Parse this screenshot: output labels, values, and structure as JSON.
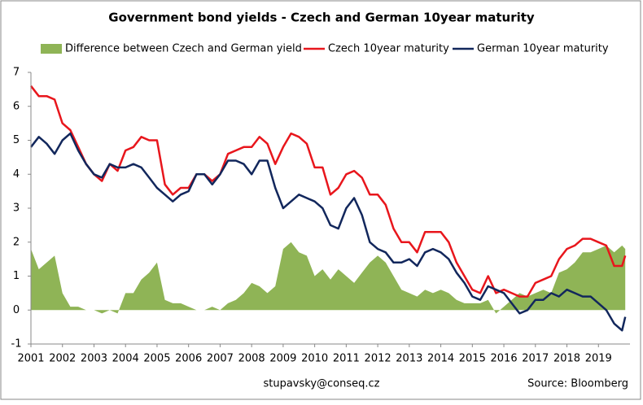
{
  "chart_data": {
    "type": "line",
    "title": "Government bond yields - Czech and German 10year maturity",
    "footer": "stupavsky@conseq.cz",
    "source": "Source: Bloomberg",
    "x": [
      2001,
      2001.25,
      2001.5,
      2001.75,
      2002,
      2002.25,
      2002.5,
      2002.75,
      2003,
      2003.25,
      2003.5,
      2003.75,
      2004,
      2004.25,
      2004.5,
      2004.75,
      2005,
      2005.25,
      2005.5,
      2005.75,
      2006,
      2006.25,
      2006.5,
      2006.75,
      2007,
      2007.25,
      2007.5,
      2007.75,
      2008,
      2008.25,
      2008.5,
      2008.75,
      2009,
      2009.25,
      2009.5,
      2009.75,
      2010,
      2010.25,
      2010.5,
      2010.75,
      2011,
      2011.25,
      2011.5,
      2011.75,
      2012,
      2012.25,
      2012.5,
      2012.75,
      2013,
      2013.25,
      2013.5,
      2013.75,
      2014,
      2014.25,
      2014.5,
      2014.75,
      2015,
      2015.25,
      2015.5,
      2015.75,
      2016,
      2016.25,
      2016.5,
      2016.75,
      2017,
      2017.25,
      2017.5,
      2017.75,
      2018,
      2018.25,
      2018.5,
      2018.75,
      2019,
      2019.25,
      2019.5,
      2019.75,
      2019.85
    ],
    "series": [
      {
        "name": "Difference between Czech and German yield",
        "color": "#8fb456",
        "style": "area",
        "values": [
          1.8,
          1.2,
          1.4,
          1.6,
          0.5,
          0.1,
          0.1,
          0.0,
          0.0,
          -0.1,
          0.0,
          -0.1,
          0.5,
          0.5,
          0.9,
          1.1,
          1.4,
          0.3,
          0.2,
          0.2,
          0.1,
          0.0,
          0.0,
          0.1,
          0.0,
          0.2,
          0.3,
          0.5,
          0.8,
          0.7,
          0.5,
          0.7,
          1.8,
          2.0,
          1.7,
          1.6,
          1.0,
          1.2,
          0.9,
          1.2,
          1.0,
          0.8,
          1.1,
          1.4,
          1.6,
          1.4,
          1.0,
          0.6,
          0.5,
          0.4,
          0.6,
          0.5,
          0.6,
          0.5,
          0.3,
          0.2,
          0.2,
          0.2,
          0.3,
          -0.1,
          0.1,
          0.3,
          0.5,
          0.4,
          0.5,
          0.6,
          0.5,
          1.1,
          1.2,
          1.4,
          1.7,
          1.7,
          1.8,
          1.9,
          1.7,
          1.9,
          1.8
        ]
      },
      {
        "name": "Czech 10year maturity",
        "color": "#e8161c",
        "style": "line",
        "values": [
          6.6,
          6.3,
          6.3,
          6.2,
          5.5,
          5.3,
          4.8,
          4.3,
          4.0,
          3.8,
          4.3,
          4.1,
          4.7,
          4.8,
          5.1,
          5.0,
          5.0,
          3.7,
          3.4,
          3.6,
          3.6,
          4.0,
          4.0,
          3.8,
          4.0,
          4.6,
          4.7,
          4.8,
          4.8,
          5.1,
          4.9,
          4.3,
          4.8,
          5.2,
          5.1,
          4.9,
          4.2,
          4.2,
          3.4,
          3.6,
          4.0,
          4.1,
          3.9,
          3.4,
          3.4,
          3.1,
          2.4,
          2.0,
          2.0,
          1.7,
          2.3,
          2.3,
          2.3,
          2.0,
          1.4,
          1.0,
          0.6,
          0.5,
          1.0,
          0.5,
          0.6,
          0.5,
          0.4,
          0.4,
          0.8,
          0.9,
          1.0,
          1.5,
          1.8,
          1.9,
          2.1,
          2.1,
          2.0,
          1.9,
          1.3,
          1.3,
          1.6
        ]
      },
      {
        "name": "German 10year maturity",
        "color": "#12275c",
        "style": "line",
        "values": [
          4.8,
          5.1,
          4.9,
          4.6,
          5.0,
          5.2,
          4.7,
          4.3,
          4.0,
          3.9,
          4.3,
          4.2,
          4.2,
          4.3,
          4.2,
          3.9,
          3.6,
          3.4,
          3.2,
          3.4,
          3.5,
          4.0,
          4.0,
          3.7,
          4.0,
          4.4,
          4.4,
          4.3,
          4.0,
          4.4,
          4.4,
          3.6,
          3.0,
          3.2,
          3.4,
          3.3,
          3.2,
          3.0,
          2.5,
          2.4,
          3.0,
          3.3,
          2.8,
          2.0,
          1.8,
          1.7,
          1.4,
          1.4,
          1.5,
          1.3,
          1.7,
          1.8,
          1.7,
          1.5,
          1.1,
          0.8,
          0.4,
          0.3,
          0.7,
          0.6,
          0.5,
          0.2,
          -0.1,
          0.0,
          0.3,
          0.3,
          0.5,
          0.4,
          0.6,
          0.5,
          0.4,
          0.4,
          0.2,
          0.0,
          -0.4,
          -0.6,
          -0.2
        ]
      }
    ],
    "xlim": [
      2001,
      2020
    ],
    "xticks": [
      2001,
      2002,
      2003,
      2004,
      2005,
      2006,
      2007,
      2008,
      2009,
      2010,
      2011,
      2012,
      2013,
      2014,
      2015,
      2016,
      2017,
      2018,
      2019
    ],
    "ylim": [
      -1,
      7
    ],
    "yticks": [
      -1,
      0,
      1,
      2,
      3,
      4,
      5,
      6,
      7
    ],
    "legend": "top"
  }
}
